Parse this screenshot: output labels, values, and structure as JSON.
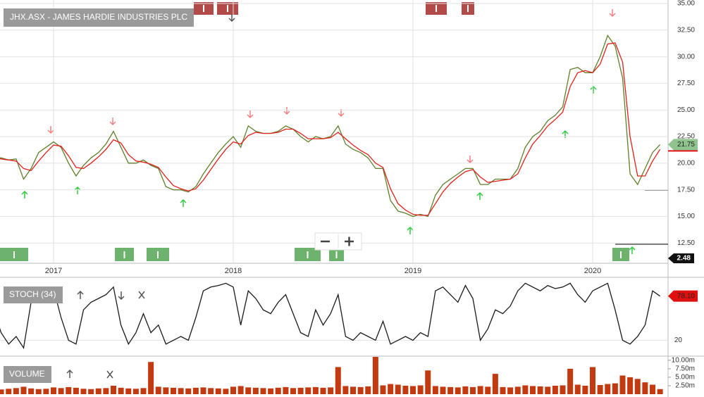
{
  "chart_data": [
    {
      "type": "line",
      "title": "JHX.ASX - JAMES HARDIE INDUSTRIES PLC",
      "categories": [
        null,
        null,
        null,
        null,
        null,
        null,
        null,
        null,
        "2017",
        null,
        null,
        null,
        null,
        null,
        null,
        null,
        null,
        null,
        null,
        null,
        null,
        null,
        null,
        null,
        null,
        null,
        null,
        null,
        null,
        null,
        null,
        null,
        "2018",
        null,
        null,
        null,
        null,
        null,
        null,
        null,
        null,
        null,
        null,
        null,
        null,
        null,
        null,
        null,
        null,
        null,
        null,
        null,
        null,
        null,
        null,
        null,
        "2019",
        null,
        null,
        null,
        null,
        null,
        null,
        null,
        null,
        null,
        null,
        null,
        null,
        null,
        null,
        null,
        null,
        null,
        null,
        null,
        null,
        null,
        null,
        null,
        "2020",
        null,
        null,
        null,
        null,
        null,
        null,
        null,
        null,
        null
      ],
      "series": [
        {
          "color": "#5f7f2a",
          "values": [
            20.5,
            20.5,
            20.3,
            20.4,
            18.5,
            19.5,
            21,
            21.5,
            22,
            21.5,
            20,
            18.8,
            19.8,
            20.5,
            21,
            21.8,
            23,
            21.5,
            20,
            20,
            20.3,
            19.8,
            19.5,
            17.8,
            17.5,
            17.5,
            17.3,
            17.8,
            19,
            20,
            21,
            21.8,
            22.5,
            21.5,
            23.5,
            23,
            22.8,
            22.8,
            23,
            23.5,
            23.2,
            22.5,
            22,
            22.5,
            22.3,
            22.5,
            23.5,
            21.8,
            21.3,
            21,
            20.5,
            19.5,
            19.5,
            16.5,
            15.5,
            15.3,
            15,
            15.2,
            15,
            17,
            18,
            18.5,
            19,
            19.5,
            19.5,
            18,
            18,
            18.5,
            18.5,
            18.5,
            19.5,
            21.5,
            22.5,
            23,
            24,
            24.5,
            25.3,
            28.8,
            29,
            28.5,
            28.5,
            30,
            32,
            31,
            28,
            19,
            18,
            19.5,
            21,
            21.75
          ]
        },
        {
          "color": "#e0201b",
          "values": [
            20.5,
            20.4,
            20.3,
            20.2,
            19.5,
            19.3,
            20.2,
            21,
            21.7,
            21.6,
            20.7,
            19.6,
            19.5,
            20,
            20.6,
            21.3,
            22.2,
            21.9,
            20.8,
            20.2,
            20.1,
            19.9,
            19.6,
            18.7,
            17.9,
            17.6,
            17.4,
            17.6,
            18.4,
            19.4,
            20.4,
            21.3,
            22,
            21.8,
            22.6,
            22.9,
            22.8,
            22.8,
            22.9,
            23.2,
            23.2,
            22.8,
            22.3,
            22.3,
            22.3,
            22.4,
            22.9,
            22.3,
            21.7,
            21.2,
            20.8,
            20,
            19.6,
            17.6,
            16.2,
            15.6,
            15.2,
            15.1,
            15.1,
            16.2,
            17.3,
            18.1,
            18.7,
            19.2,
            19.4,
            18.7,
            18.2,
            18.3,
            18.4,
            18.5,
            19,
            20.5,
            21.8,
            22.6,
            23.5,
            24.1,
            24.8,
            27.2,
            28.5,
            28.7,
            28.5,
            29.3,
            31.2,
            31.3,
            29.5,
            22.5,
            18.8,
            18.8,
            20.2,
            21.3
          ]
        }
      ],
      "ylim": [
        10.6,
        35
      ],
      "yticks": [
        {
          "value": 12.5,
          "label": "12.50"
        },
        {
          "value": 15,
          "label": "15.00"
        },
        {
          "value": 17.5,
          "label": "17.50"
        },
        {
          "value": 20,
          "label": "20.00"
        },
        {
          "value": 22.5,
          "label": "22.50"
        },
        {
          "value": 25,
          "label": "25.00"
        },
        {
          "value": 27.5,
          "label": "27.50"
        },
        {
          "value": 30,
          "label": "30.00"
        },
        {
          "value": 32.5,
          "label": "32.50"
        },
        {
          "value": 35,
          "label": "35.00"
        }
      ],
      "current_value": 21.75,
      "annotations": [
        "2.48"
      ],
      "grid": true
    },
    {
      "type": "line",
      "title": "STOCH (34)",
      "series": [
        {
          "color": "#1a1a1a",
          "values": [
            60,
            30,
            15,
            25,
            10,
            70,
            85,
            90,
            88,
            50,
            20,
            15,
            60,
            70,
            75,
            80,
            90,
            40,
            15,
            30,
            55,
            30,
            40,
            15,
            20,
            25,
            20,
            50,
            85,
            90,
            92,
            95,
            90,
            40,
            85,
            75,
            60,
            55,
            70,
            80,
            55,
            30,
            25,
            60,
            40,
            55,
            80,
            25,
            20,
            30,
            25,
            20,
            45,
            15,
            20,
            25,
            20,
            30,
            25,
            85,
            90,
            80,
            70,
            92,
            75,
            20,
            35,
            60,
            55,
            65,
            85,
            95,
            90,
            85,
            92,
            88,
            90,
            95,
            80,
            70,
            85,
            90,
            95,
            60,
            20,
            15,
            25,
            40,
            85,
            78.1
          ]
        }
      ],
      "ylim": [
        0,
        100
      ],
      "yticks": [
        20
      ],
      "current_value": {
        "value": 78.1,
        "label": "78.10"
      },
      "grid": true
    },
    {
      "type": "bar",
      "title": "VOLUME",
      "series": [
        {
          "color": "#c43a10",
          "values": [
            1.5,
            1.4,
            1.6,
            1.8,
            2.2,
            1.7,
            1.5,
            1.6,
            2,
            1.8,
            2.1,
            1.9,
            1.6,
            1.5,
            1.7,
            1.8,
            2.5,
            1.9,
            1.7,
            1.6,
            1.8,
            9.5,
            2.2,
            2,
            1.9,
            1.8,
            1.7,
            1.9,
            2,
            1.8,
            1.7,
            1.6,
            2.2,
            2.4,
            2,
            1.9,
            1.8,
            1.7,
            1.9,
            2.1,
            1.8,
            1.9,
            2,
            2.1,
            1.9,
            2,
            8,
            2.4,
            2.2,
            2.1,
            2.3,
            11,
            2.6,
            3,
            2.8,
            2.5,
            2.4,
            2.6,
            7,
            2.4,
            2.2,
            2.1,
            2,
            2.3,
            2.1,
            2.4,
            2.2,
            6,
            2.1,
            2,
            2.2,
            2.6,
            2.4,
            2.3,
            2.2,
            2.5,
            2.6,
            7.5,
            2.8,
            2.5,
            8,
            2.7,
            3,
            3.2,
            5.5,
            5,
            4.5,
            3.5,
            2.8,
            1.5
          ]
        }
      ],
      "ylim": [
        0,
        11
      ],
      "yticks": [
        {
          "value": 2.5,
          "label": "2.50m"
        },
        {
          "value": 5,
          "label": "5.00m"
        },
        {
          "value": 7.5,
          "label": "7.50m"
        },
        {
          "value": 10,
          "label": "10.00m"
        }
      ]
    }
  ]
}
